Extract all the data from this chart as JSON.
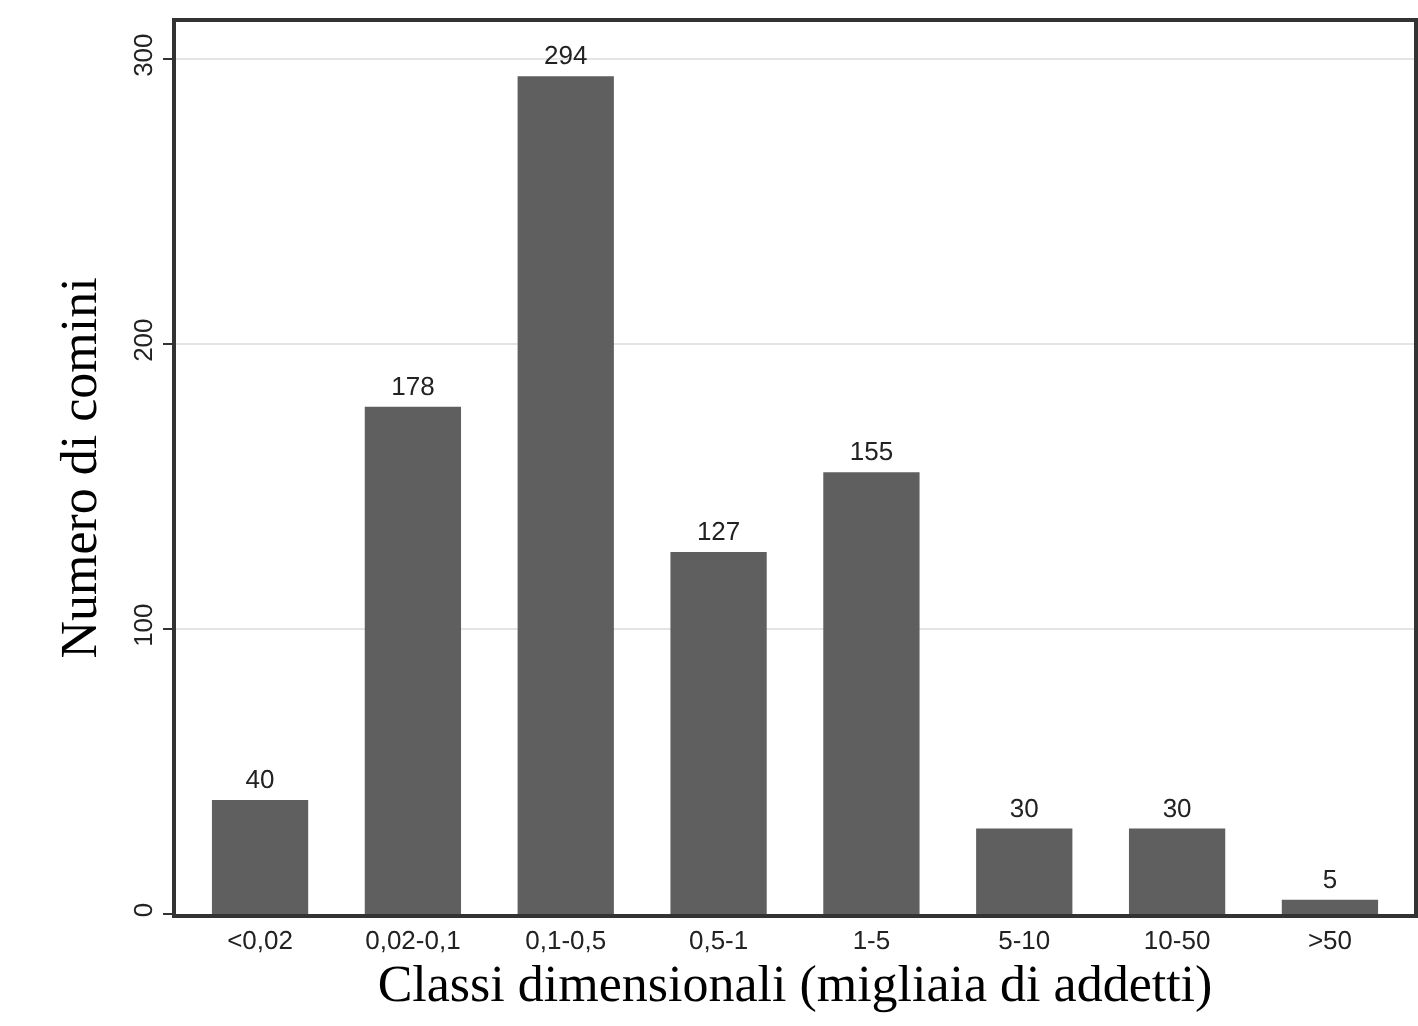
{
  "chart_data": {
    "type": "bar",
    "xlabel": "Classi dimensionali (migliaia di addetti)",
    "ylabel": "Numero di comini",
    "categories": [
      "<0,02",
      "0,02-0,1",
      "0,1-0,5",
      "0,5-1",
      "1-5",
      "5-10",
      "10-50",
      ">50"
    ],
    "values": [
      40,
      178,
      294,
      127,
      155,
      30,
      30,
      5
    ],
    "color": "#5f5f5f",
    "ylim": [
      0,
      313
    ],
    "yticks": [
      0,
      100,
      200,
      300
    ],
    "grid": "y",
    "data_labels": true,
    "legend": false
  }
}
